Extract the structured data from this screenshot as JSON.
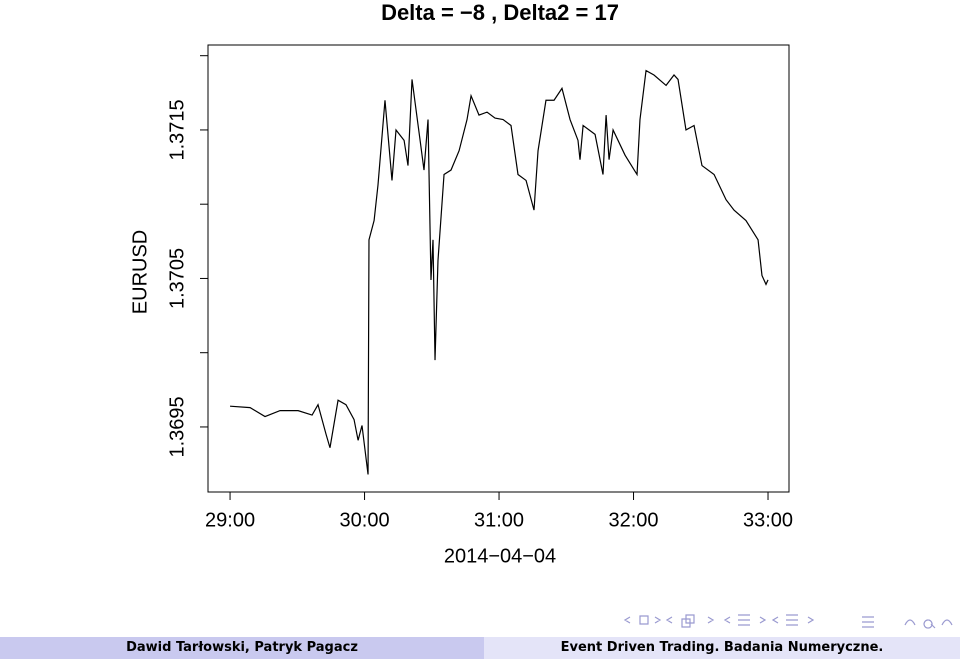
{
  "chart_data": {
    "type": "line",
    "title": "Delta = −8 , Delta2 = 17",
    "xlabel": "2014−04−04",
    "ylabel": "EURUSD",
    "x": [
      29.0,
      29.149,
      29.26,
      29.372,
      29.506,
      29.61,
      29.654,
      29.714,
      29.743,
      29.803,
      29.862,
      29.922,
      29.952,
      29.981,
      30.026,
      30.033,
      30.071,
      30.1,
      30.152,
      30.204,
      30.234,
      30.294,
      30.323,
      30.353,
      30.413,
      30.442,
      30.472,
      30.494,
      30.509,
      30.524,
      30.546,
      30.591,
      30.643,
      30.703,
      30.762,
      30.792,
      30.851,
      30.911,
      30.97,
      31.03,
      31.089,
      31.141,
      31.201,
      31.26,
      31.29,
      31.349,
      31.409,
      31.468,
      31.528,
      31.587,
      31.602,
      31.625,
      31.714,
      31.773,
      31.796,
      31.818,
      31.848,
      31.937,
      32.026,
      32.048,
      32.093,
      32.152,
      32.242,
      32.301,
      32.331,
      32.39,
      32.45,
      32.509,
      32.599,
      32.688,
      32.747,
      32.836,
      32.926,
      32.955,
      32.985,
      33.0
    ],
    "series": [
      {
        "name": "EURUSD",
        "color": "#000000",
        "values": [
          1.36964,
          1.36963,
          1.36957,
          1.36961,
          1.36961,
          1.36958,
          1.36965,
          1.36945,
          1.36936,
          1.36968,
          1.36965,
          1.36955,
          1.36941,
          1.36951,
          1.36918,
          1.37076,
          1.37089,
          1.37113,
          1.3717,
          1.37116,
          1.3715,
          1.37143,
          1.37126,
          1.37184,
          1.37143,
          1.37123,
          1.37157,
          1.37049,
          1.37076,
          1.36995,
          1.37062,
          1.3712,
          1.37123,
          1.37136,
          1.37157,
          1.37173,
          1.3716,
          1.37162,
          1.37158,
          1.37157,
          1.37153,
          1.3712,
          1.37116,
          1.37096,
          1.37136,
          1.3717,
          1.3717,
          1.37178,
          1.37157,
          1.37143,
          1.3713,
          1.37153,
          1.37147,
          1.3712,
          1.3716,
          1.3713,
          1.3715,
          1.37133,
          1.3712,
          1.37157,
          1.3719,
          1.37187,
          1.3718,
          1.37187,
          1.37184,
          1.3715,
          1.37153,
          1.37126,
          1.3712,
          1.37103,
          1.37096,
          1.37089,
          1.37076,
          1.37052,
          1.37046,
          1.37049
        ]
      }
    ],
    "xlim": [
      28.836,
      33.156
    ],
    "xticks": [
      {
        "value": 29,
        "label": "29:00"
      },
      {
        "value": 30,
        "label": "30:00"
      },
      {
        "value": 31,
        "label": "31:00"
      },
      {
        "value": 32,
        "label": "32:00"
      },
      {
        "value": 33,
        "label": "33:00"
      }
    ],
    "ylim": [
      1.369062,
      1.372072
    ],
    "yticks": [
      1.3695,
      1.3705,
      1.3715
    ],
    "yminor": [
      1.37,
      1.371,
      1.372
    ]
  },
  "footer": {
    "authors": "Dawid Tarłowski, Patryk Pagacz",
    "title": "Event Driven Trading. Badania Numeryczne."
  }
}
